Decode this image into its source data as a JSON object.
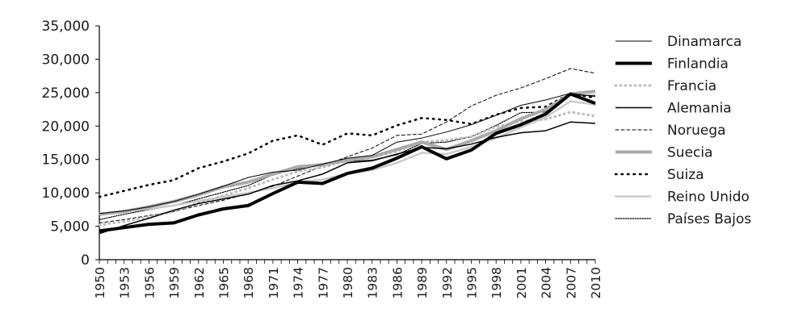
{
  "chart_data": {
    "type": "line",
    "title": "",
    "xlabel": "",
    "ylabel": "",
    "xlim": [
      1950,
      2010
    ],
    "ylim": [
      0,
      35000
    ],
    "y_ticks": [
      0,
      5000,
      10000,
      15000,
      20000,
      25000,
      30000,
      35000
    ],
    "y_tick_labels": [
      "0",
      "5,000",
      "10,000",
      "15,000",
      "20,000",
      "25,000",
      "30,000",
      "35,000"
    ],
    "x_tick_labels": [
      "1950",
      "1953",
      "1956",
      "1959",
      "1962",
      "1965",
      "1968",
      "1971",
      "1974",
      "1977",
      "1980",
      "1983",
      "1986",
      "1989",
      "1992",
      "1995",
      "1998",
      "2001",
      "2004",
      "2007",
      "2010"
    ],
    "grid": false,
    "legend_position": "right",
    "x": [
      1950,
      1953,
      1956,
      1959,
      1962,
      1965,
      1968,
      1971,
      1974,
      1977,
      1980,
      1983,
      1986,
      1989,
      1992,
      1995,
      1998,
      2001,
      2004,
      2007,
      2010
    ],
    "series": [
      {
        "name": "Dinamarca",
        "color": "#000000",
        "width": 1,
        "dash": "",
        "values": [
          6900,
          7300,
          7900,
          8700,
          9800,
          11000,
          12300,
          13100,
          13400,
          14300,
          15200,
          15600,
          17600,
          18200,
          19100,
          20200,
          21600,
          23100,
          23900,
          24900,
          24400
        ]
      },
      {
        "name": "Finlandia",
        "color": "#000000",
        "width": 4,
        "dash": "",
        "values": [
          4300,
          4800,
          5300,
          5500,
          6700,
          7600,
          8100,
          9900,
          11600,
          11400,
          12900,
          13700,
          15200,
          16900,
          15100,
          16400,
          18900,
          20200,
          21800,
          24800,
          23400
        ]
      },
      {
        "name": "Francia",
        "color": "#bdbdbd",
        "width": 3,
        "dash": "1,5",
        "values": [
          5200,
          5700,
          6400,
          7200,
          8500,
          9600,
          10700,
          12000,
          13200,
          13800,
          14800,
          15300,
          16200,
          17600,
          17900,
          18400,
          19900,
          20700,
          21000,
          22100,
          21500
        ]
      },
      {
        "name": "Alemania",
        "color": "#000000",
        "width": 1.5,
        "dash": "",
        "values": [
          3900,
          5100,
          6200,
          7400,
          8400,
          9100,
          9800,
          11100,
          11800,
          12800,
          14500,
          14800,
          15800,
          16800,
          16600,
          17300,
          18300,
          19000,
          19300,
          20600,
          20400
        ]
      },
      {
        "name": "Noruega",
        "color": "#000000",
        "width": 1,
        "dash": "4,3",
        "values": [
          5500,
          6000,
          6600,
          7200,
          8100,
          8900,
          9900,
          11000,
          12500,
          14000,
          15400,
          16700,
          18600,
          18800,
          20600,
          23000,
          24600,
          25700,
          27100,
          28600,
          27900
        ]
      },
      {
        "name": "Suecia",
        "color": "#aaaaaa",
        "width": 4,
        "dash": "",
        "values": [
          6800,
          7200,
          7900,
          8700,
          9700,
          10900,
          11600,
          12800,
          13900,
          14200,
          14900,
          15400,
          16500,
          17600,
          16500,
          17800,
          19300,
          21100,
          22500,
          24800,
          25200
        ]
      },
      {
        "name": "Suiza",
        "color": "#000000",
        "width": 2.5,
        "dash": "1.5,6",
        "values": [
          9400,
          10300,
          11200,
          11900,
          13700,
          14700,
          15900,
          17800,
          18600,
          17200,
          18900,
          18600,
          20100,
          21200,
          20900,
          20300,
          21700,
          22700,
          22900,
          24900,
          24200
        ]
      },
      {
        "name": "Reino Unido",
        "color": "#c8c8c8",
        "width": 2.5,
        "dash": "1,2",
        "values": [
          6900,
          7200,
          7600,
          8100,
          8800,
          9400,
          10000,
          10700,
          11600,
          12000,
          12900,
          13400,
          14500,
          16000,
          15800,
          16900,
          18200,
          19800,
          21300,
          23700,
          23200
        ]
      },
      {
        "name": "Países Bajos",
        "color": "#000000",
        "width": 1.2,
        "dash": "1.5,1.5",
        "values": [
          6000,
          6800,
          7500,
          8100,
          9100,
          10100,
          11100,
          12700,
          13600,
          14200,
          14700,
          14900,
          15700,
          17400,
          17600,
          18400,
          20100,
          22000,
          22100,
          24600,
          24600
        ]
      }
    ]
  }
}
